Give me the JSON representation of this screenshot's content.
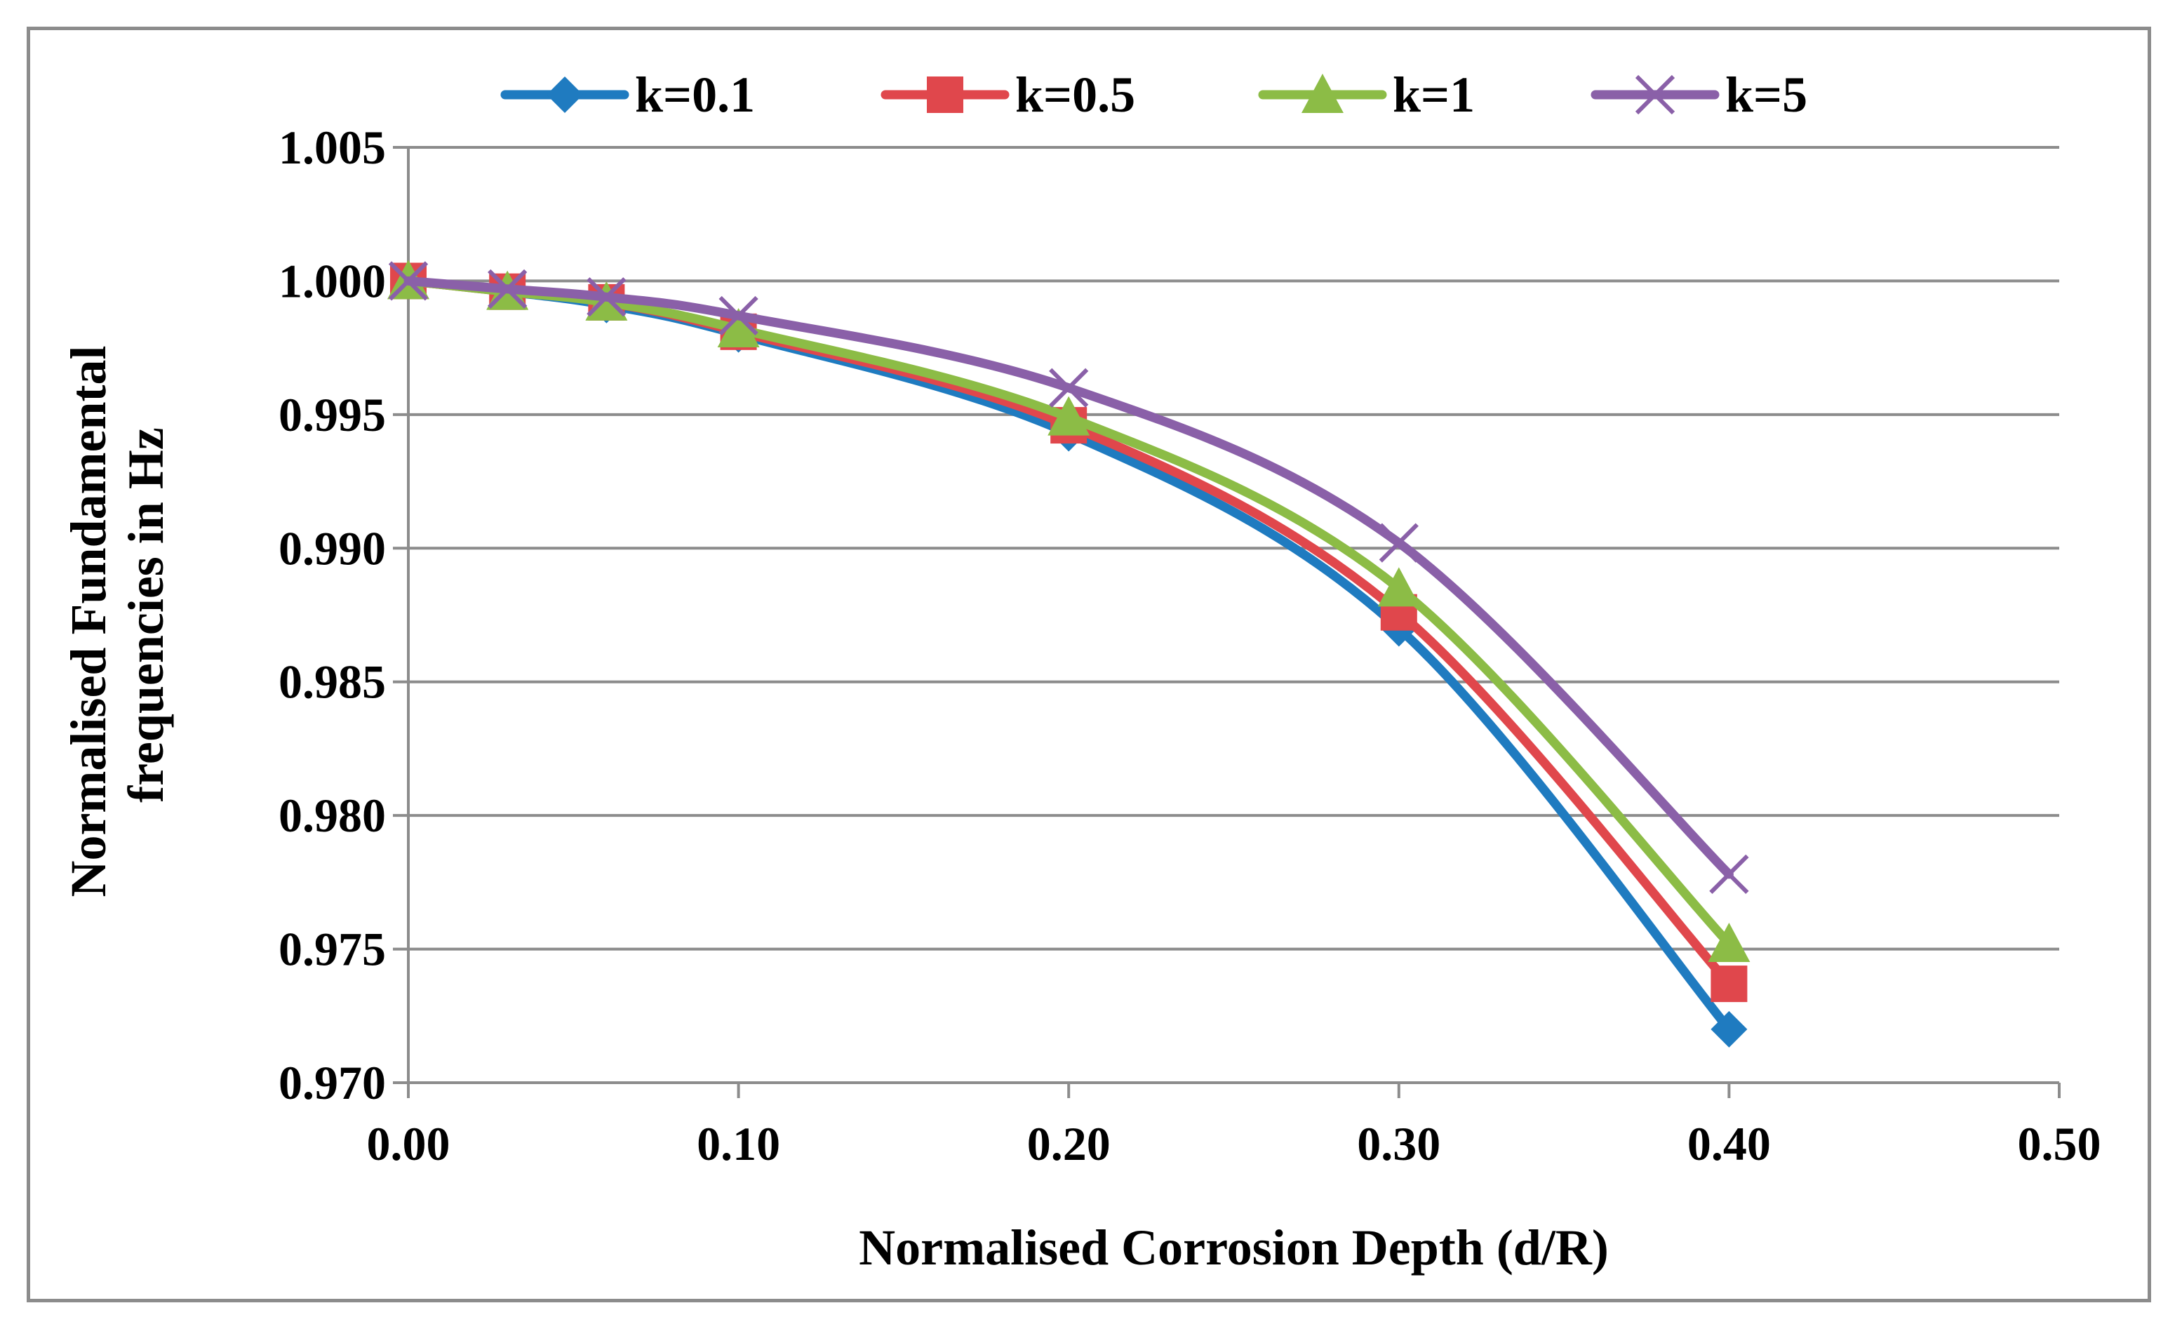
{
  "chart_data": {
    "type": "line",
    "title": "",
    "xlabel": "Normalised Corrosion Depth (d/R)",
    "ylabel_lines": [
      "Normalised Fundamental",
      "frequencies in Hz"
    ],
    "xlim": [
      0.0,
      0.5
    ],
    "ylim": [
      0.97,
      1.005
    ],
    "x_ticks": [
      0.0,
      0.1,
      0.2,
      0.3,
      0.4,
      0.5
    ],
    "x_tick_labels": [
      "0.00",
      "0.10",
      "0.20",
      "0.30",
      "0.40",
      "0.50"
    ],
    "y_ticks": [
      0.97,
      0.975,
      0.98,
      0.985,
      0.99,
      0.995,
      1.0,
      1.005
    ],
    "y_tick_labels": [
      "0.970",
      "0.975",
      "0.980",
      "0.985",
      "0.990",
      "0.995",
      "1.000",
      "1.005"
    ],
    "grid": "horizontal",
    "legend_position": "top",
    "x": [
      0.0,
      0.03,
      0.06,
      0.1,
      0.2,
      0.3,
      0.4
    ],
    "series": [
      {
        "name": "k=0.1",
        "color": "#1f7bc0",
        "marker": "diamond",
        "values": [
          1.0,
          0.9996,
          0.9991,
          0.998,
          0.9943,
          0.987,
          0.972
        ]
      },
      {
        "name": "k=0.5",
        "color": "#e0474c",
        "marker": "square",
        "values": [
          1.0,
          0.9996,
          0.9992,
          0.9981,
          0.9946,
          0.9876,
          0.9737
        ]
      },
      {
        "name": "k=1",
        "color": "#8cbc46",
        "marker": "triangle",
        "values": [
          1.0,
          0.9996,
          0.9992,
          0.9982,
          0.9949,
          0.9885,
          0.9752
        ]
      },
      {
        "name": "k=5",
        "color": "#8a60a8",
        "marker": "x",
        "values": [
          1.0,
          0.9997,
          0.9994,
          0.9987,
          0.996,
          0.9902,
          0.9778
        ]
      }
    ]
  }
}
